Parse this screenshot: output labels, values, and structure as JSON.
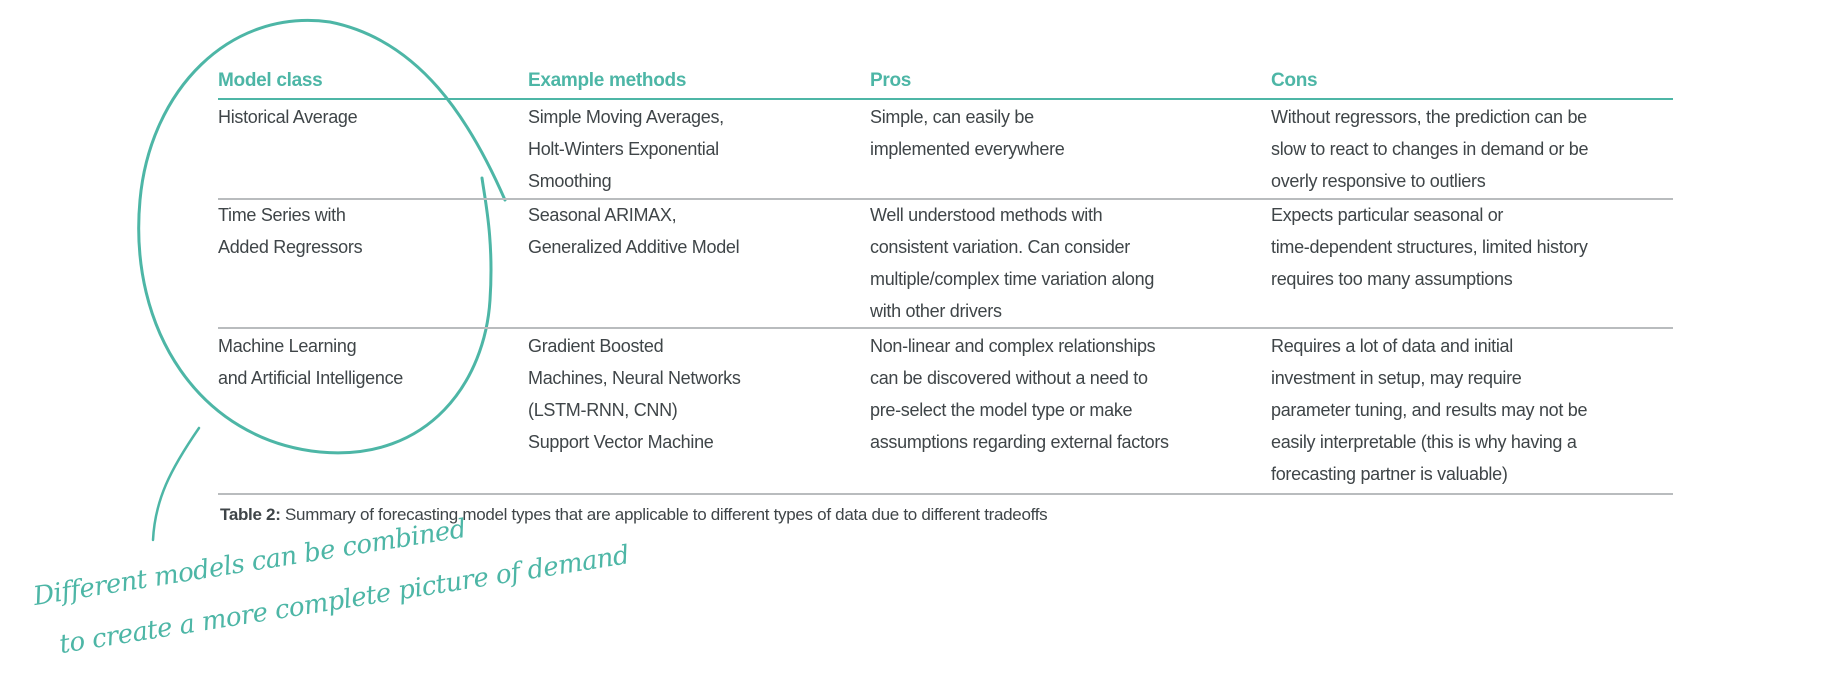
{
  "table": {
    "headers": [
      "Model class",
      "Example methods",
      "Pros",
      "Cons"
    ],
    "rows": [
      {
        "model_class": [
          "Historical Average"
        ],
        "methods": [
          "Simple Moving Averages,",
          "Holt-Winters Exponential",
          "Smoothing"
        ],
        "pros": [
          "Simple, can easily be",
          "implemented everywhere"
        ],
        "cons": [
          "Without regressors, the prediction can be",
          "slow to react to changes in demand or be",
          "overly responsive to outliers"
        ]
      },
      {
        "model_class": [
          "Time Series with",
          "Added Regressors"
        ],
        "methods": [
          "Seasonal ARIMAX,",
          "Generalized Additive Model"
        ],
        "pros": [
          "Well understood methods with",
          "consistent variation. Can consider",
          "multiple/complex time variation along",
          "with other drivers"
        ],
        "cons": [
          "Expects particular seasonal or",
          "time-dependent structures, limited history",
          "requires too many assumptions"
        ]
      },
      {
        "model_class": [
          "Machine Learning",
          "and Artificial Intelligence"
        ],
        "methods": [
          "Gradient Boosted",
          "Machines, Neural Networks",
          "(LSTM-RNN, CNN)",
          "Support Vector Machine"
        ],
        "pros": [
          "Non-linear and complex relationships",
          "can be discovered without a need to",
          "pre-select the model type or make",
          "assumptions regarding external factors"
        ],
        "cons": [
          "Requires a lot of data and initial",
          "investment in setup, may require",
          "parameter tuning, and results may not be",
          "easily interpretable (this is why having a",
          "forecasting partner is valuable)"
        ]
      }
    ]
  },
  "caption": {
    "label": "Table 2:",
    "text": " Summary of forecasting model types that are applicable to different types of data due to different tradeoffs"
  },
  "annotation": {
    "lines": [
      "Different models can be combined",
      "to create a more complete picture of demand"
    ]
  },
  "colors": {
    "accent": "#4db6a6",
    "text": "#3f4548",
    "rule": "#b9bcbe"
  }
}
